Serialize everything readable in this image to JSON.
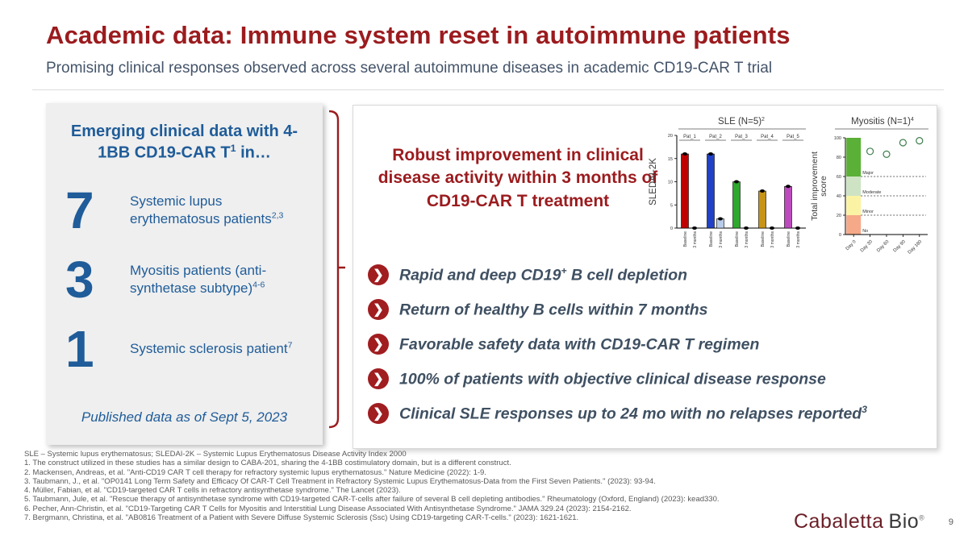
{
  "slide": {
    "title": "Academic data: Immune system reset in autoimmune patients",
    "subtitle": "Promising clinical responses observed across several autoimmune diseases in academic CD19-CAR T trial",
    "page_number": "9"
  },
  "left_box": {
    "heading_pre": "Emerging clinical data with 4-1BB CD19-CAR T",
    "heading_sup": "1",
    "heading_post": " in…",
    "stats": [
      {
        "number": "7",
        "label": "Systemic lupus erythematosus patients",
        "sup": "2,3"
      },
      {
        "number": "3",
        "label": "Myositis patients (anti-synthetase subtype)",
        "sup": "4-6"
      },
      {
        "number": "1",
        "label": "Systemic sclerosis patient",
        "sup": "7"
      }
    ],
    "published_note": "Published data as of Sept 5, 2023"
  },
  "panel": {
    "headline": "Robust improvement in clinical disease activity within 3 months of CD19-CAR T treatment",
    "bullets": [
      {
        "pre": "Rapid and deep CD19",
        "sup": "+",
        "post": " B cell depletion"
      },
      {
        "pre": "Return of healthy B cells within 7 months",
        "sup": "",
        "post": ""
      },
      {
        "pre": "Favorable safety data with CD19-CAR T regimen",
        "sup": "",
        "post": ""
      },
      {
        "pre": "100% of patients with objective clinical disease response",
        "sup": "",
        "post": ""
      },
      {
        "pre": "Clinical SLE responses up to 24 mo with no relapses reported",
        "sup": "3",
        "post": ""
      }
    ],
    "chevron_glyph": "❯"
  },
  "chart_data": [
    {
      "type": "bar",
      "title": "SLE (N=5)",
      "title_sup": "2",
      "ylabel": "SLEDAI-2K",
      "ylim": [
        0,
        20
      ],
      "yticks": [
        0,
        5,
        10,
        15,
        20
      ],
      "groups": [
        "Pat_1",
        "Pat_2",
        "Pat_3",
        "Pat_4",
        "Pat_5"
      ],
      "categories": [
        "Baseline",
        "3 months"
      ],
      "series": [
        {
          "name": "Baseline",
          "values": [
            16,
            16,
            10,
            8,
            9
          ],
          "colors": [
            "#C00000",
            "#2141C6",
            "#2EA82E",
            "#C79417",
            "#BE4BBE"
          ]
        },
        {
          "name": "3 months",
          "values": [
            0,
            2,
            0,
            0,
            0
          ],
          "colors": [
            "#000000",
            "#B8CCEA",
            "#000000",
            "#000000",
            "#000000"
          ]
        }
      ],
      "grid": false,
      "legend": "none"
    },
    {
      "type": "scatter",
      "title": "Myositis (N=1)",
      "title_sup": "4",
      "ylabel": "Total improvement score",
      "ylim": [
        0,
        100
      ],
      "yticks": [
        0,
        20,
        40,
        60,
        80,
        100
      ],
      "x": [
        "Day 0",
        "Day 30",
        "Day 60",
        "Day 90",
        "Day 180"
      ],
      "values": [
        null,
        86,
        83,
        95,
        97
      ],
      "zones": [
        {
          "label": "No",
          "from": 0,
          "to": 20,
          "color": "#F5A988"
        },
        {
          "label": "Minor",
          "from": 20,
          "to": 40,
          "color": "#FBF3A4"
        },
        {
          "label": "Moderate",
          "from": 40,
          "to": 60,
          "color": "#CDE3C4"
        },
        {
          "label": "Major",
          "from": 60,
          "to": 100,
          "color": "#5BB037"
        }
      ],
      "threshold_lines": [
        60,
        40,
        20
      ],
      "marker": "open-circle",
      "marker_color": "#3E7D4C",
      "grid": false,
      "legend": "none"
    }
  ],
  "footnotes": [
    "SLE – Systemic lupus erythematosus; SLEDAI-2K – Systemic Lupus Erythematosus Disease Activity Index 2000",
    "1. The construct utilized in these studies has a similar design to CABA-201, sharing the 4-1BB costimulatory domain, but is a different construct.",
    "2. Mackensen, Andreas, et al. \"Anti-CD19 CAR T cell therapy for refractory systemic lupus erythematosus.\" Nature Medicine (2022): 1-9.",
    "3. Taubmann, J., et al. \"OP0141 Long Term Safety and Efficacy Of CAR-T Cell Treatment in Refractory Systemic Lupus Erythematosus-Data from the First Seven Patients.\" (2023): 93-94.",
    "4. Müller, Fabian, et al. \"CD19-targeted CAR T cells in refractory antisynthetase syndrome.\" The Lancet (2023).",
    "5. Taubmann, Jule, et al. \"Rescue therapy of antisynthetase syndrome with CD19-targeted CAR-T-cells after failure of several B cell depleting antibodies.\" Rheumatology (Oxford, England) (2023): kead330.",
    "6. Pecher, Ann-Christin, et al. \"CD19-Targeting CAR T Cells for Myositis and Interstitial Lung Disease Associated With Antisynthetase Syndrome.\" JAMA 329.24 (2023): 2154-2162.",
    "7. Bergmann, Christina, et al. \"AB0816 Treatment of a Patient with Severe Diffuse Systemic Sclerosis (Ssc) Using CD19-targeting CAR-T-cells.\" (2023): 1621-1621."
  ],
  "logo": {
    "brand": "Cabaletta",
    "suffix": "Bio",
    "reg": "®"
  },
  "colors": {
    "accent_red": "#9B1B1E",
    "accent_blue": "#1F5C99",
    "bullet_text": "#3F5062",
    "box_bg": "#EFEFEF",
    "footer_gray": "#595959"
  }
}
